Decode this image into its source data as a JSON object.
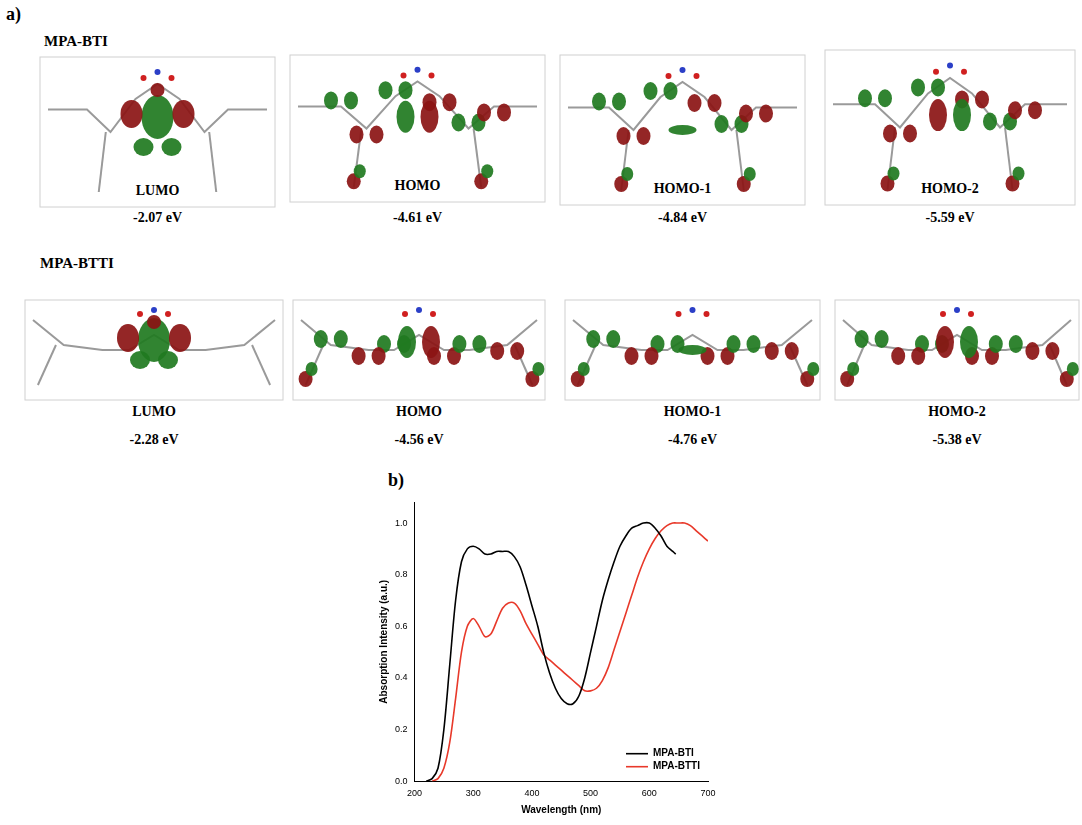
{
  "panel_a": {
    "label": "a)",
    "molecules": [
      {
        "name": "MPA-BTI",
        "orbitals": [
          {
            "label": "LUMO",
            "energy": {
              "value": -2.07,
              "label": "-2.07 eV"
            }
          },
          {
            "label": "HOMO",
            "energy": {
              "value": -4.61,
              "label": "-4.61 eV"
            }
          },
          {
            "label": "HOMO-1",
            "energy": {
              "value": -4.84,
              "label": "-4.84 eV"
            }
          },
          {
            "label": "HOMO-2",
            "energy": {
              "value": -5.59,
              "label": "-5.59 eV"
            }
          }
        ]
      },
      {
        "name": "MPA-BTTI",
        "orbitals": [
          {
            "label": "LUMO",
            "energy": {
              "value": -2.28,
              "label": "-2.28 eV"
            }
          },
          {
            "label": "HOMO",
            "energy": {
              "value": -4.56,
              "label": "-4.56 eV"
            }
          },
          {
            "label": "HOMO-1",
            "energy": {
              "value": -4.76,
              "label": "-4.76 eV"
            }
          },
          {
            "label": "HOMO-2",
            "energy": {
              "value": -5.38,
              "label": "-5.38 eV"
            }
          }
        ]
      }
    ]
  },
  "panel_b": {
    "label": "b)"
  },
  "chart_data": {
    "type": "line",
    "x_label": "Wavelength (nm)",
    "y_label": "Absorption Intensity (a.u.)",
    "xlim": [
      200,
      700
    ],
    "xticks": [
      200,
      300,
      400,
      500,
      600,
      700
    ],
    "ylim": [
      0,
      1.08
    ],
    "yticks": [
      {
        "value": 0,
        "label": "0.0"
      },
      0.2,
      0.4,
      0.6,
      0.8,
      {
        "value": 1,
        "label": "1.0"
      }
    ],
    "grid": false,
    "legend": "lower right",
    "series": [
      {
        "name": "MPA-BTI",
        "color": "#000000",
        "x": [
          220,
          230,
          240,
          250,
          260,
          270,
          280,
          290,
          300,
          310,
          320,
          330,
          340,
          350,
          360,
          370,
          380,
          390,
          400,
          410,
          420,
          430,
          440,
          450,
          460,
          470,
          480,
          490,
          500,
          510,
          520,
          530,
          540,
          550,
          560,
          570,
          580,
          590,
          600,
          610,
          620,
          630,
          640,
          645
        ],
        "values": [
          0,
          0.01,
          0.05,
          0.2,
          0.45,
          0.7,
          0.85,
          0.9,
          0.91,
          0.9,
          0.88,
          0.88,
          0.89,
          0.89,
          0.89,
          0.87,
          0.83,
          0.76,
          0.68,
          0.6,
          0.5,
          0.42,
          0.36,
          0.32,
          0.3,
          0.3,
          0.33,
          0.4,
          0.5,
          0.6,
          0.7,
          0.78,
          0.85,
          0.91,
          0.95,
          0.98,
          0.99,
          1.0,
          1.0,
          0.98,
          0.95,
          0.91,
          0.89,
          0.88
        ]
      },
      {
        "name": "MPA-BTTI",
        "color": "#e8392a",
        "x": [
          230,
          240,
          250,
          260,
          270,
          280,
          290,
          300,
          310,
          320,
          330,
          340,
          350,
          360,
          370,
          380,
          390,
          400,
          410,
          420,
          430,
          440,
          450,
          460,
          470,
          480,
          490,
          500,
          510,
          520,
          530,
          540,
          550,
          560,
          570,
          580,
          590,
          600,
          610,
          620,
          630,
          640,
          650,
          660,
          670,
          680,
          690,
          700
        ],
        "values": [
          0,
          0.01,
          0.05,
          0.15,
          0.32,
          0.5,
          0.6,
          0.63,
          0.6,
          0.56,
          0.57,
          0.62,
          0.67,
          0.69,
          0.69,
          0.66,
          0.61,
          0.57,
          0.53,
          0.49,
          0.47,
          0.45,
          0.43,
          0.41,
          0.39,
          0.37,
          0.35,
          0.35,
          0.36,
          0.39,
          0.44,
          0.51,
          0.58,
          0.65,
          0.72,
          0.79,
          0.85,
          0.9,
          0.94,
          0.97,
          0.99,
          1.0,
          1.0,
          1.0,
          0.99,
          0.97,
          0.95,
          0.93
        ]
      }
    ]
  }
}
